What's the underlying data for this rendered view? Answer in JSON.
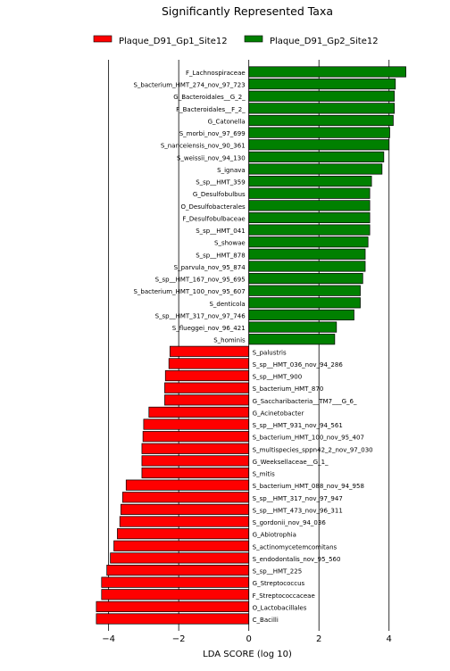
{
  "chart_data": {
    "type": "bar",
    "orientation": "horizontal",
    "title": "Significantly Represented Taxa",
    "xlabel": "LDA SCORE (log 10)",
    "ylabel": "",
    "xlim": [
      -4.5,
      5.0
    ],
    "xticks": [
      -4,
      -2,
      0,
      2,
      4
    ],
    "xtick_labels": [
      "−4",
      "−2",
      "0",
      "2",
      "4"
    ],
    "grid": "vertical lines at -4, -2, 2, 4",
    "legend_position": "top",
    "series": [
      {
        "name": "Plaque_D91_Gp1_Site12",
        "color": "#ff0000"
      },
      {
        "name": "Plaque_D91_Gp2_Site12",
        "color": "#008000"
      }
    ],
    "bars": [
      {
        "label": "F_Lachnospiraceae",
        "value": 4.48,
        "group": 1
      },
      {
        "label": "S_bacterium_HMT_274_nov_97_723",
        "value": 4.18,
        "group": 1
      },
      {
        "label": "G_Bacteroidales__G_2_",
        "value": 4.15,
        "group": 1
      },
      {
        "label": "F_Bacteroidales__F_2_",
        "value": 4.15,
        "group": 1
      },
      {
        "label": "G_Catonella",
        "value": 4.12,
        "group": 1
      },
      {
        "label": "S_morbi_nov_97_699",
        "value": 4.02,
        "group": 1
      },
      {
        "label": "S_nanceiensis_nov_90_361",
        "value": 4.0,
        "group": 1
      },
      {
        "label": "S_weissii_nov_94_130",
        "value": 3.85,
        "group": 1
      },
      {
        "label": "S_ignava",
        "value": 3.8,
        "group": 1
      },
      {
        "label": "S_sp__HMT_359",
        "value": 3.5,
        "group": 1
      },
      {
        "label": "G_Desulfobulbus",
        "value": 3.45,
        "group": 1
      },
      {
        "label": "O_Desulfobacterales",
        "value": 3.45,
        "group": 1
      },
      {
        "label": "F_Desulfobulbaceae",
        "value": 3.45,
        "group": 1
      },
      {
        "label": "S_sp__HMT_041",
        "value": 3.45,
        "group": 1
      },
      {
        "label": "S_showae",
        "value": 3.4,
        "group": 1
      },
      {
        "label": "S_sp__HMT_878",
        "value": 3.32,
        "group": 1
      },
      {
        "label": "S_parvula_nov_95_874",
        "value": 3.32,
        "group": 1
      },
      {
        "label": "S_sp__HMT_167_nov_95_695",
        "value": 3.25,
        "group": 1
      },
      {
        "label": "S_bacterium_HMT_100_nov_95_607",
        "value": 3.18,
        "group": 1
      },
      {
        "label": "S_denticola",
        "value": 3.18,
        "group": 1
      },
      {
        "label": "S_sp__HMT_317_nov_97_746",
        "value": 3.0,
        "group": 1
      },
      {
        "label": "S_flueggei_nov_96_421",
        "value": 2.5,
        "group": 1
      },
      {
        "label": "S_hominis",
        "value": 2.45,
        "group": 1
      },
      {
        "label": "S_palustris",
        "value": -2.25,
        "group": 0
      },
      {
        "label": "S_sp__HMT_036_nov_94_286",
        "value": -2.28,
        "group": 0
      },
      {
        "label": "S_sp__HMT_900",
        "value": -2.38,
        "group": 0
      },
      {
        "label": "S_bacterium_HMT_870",
        "value": -2.4,
        "group": 0
      },
      {
        "label": "G_Saccharibacteria__TM7___G_6_",
        "value": -2.4,
        "group": 0
      },
      {
        "label": "G_Acinetobacter",
        "value": -2.85,
        "group": 0
      },
      {
        "label": "S_sp__HMT_931_nov_94_561",
        "value": -3.0,
        "group": 0
      },
      {
        "label": "S_bacterium_HMT_100_nov_95_407",
        "value": -3.02,
        "group": 0
      },
      {
        "label": "S_multispecies_sppn42_2_nov_97_030",
        "value": -3.05,
        "group": 0
      },
      {
        "label": "G_Weeksellaceae__G_1_",
        "value": -3.05,
        "group": 0
      },
      {
        "label": "S_mitis",
        "value": -3.05,
        "group": 0
      },
      {
        "label": "S_bacterium_HMT_088_nov_94_958",
        "value": -3.5,
        "group": 0
      },
      {
        "label": "S_sp__HMT_317_nov_97_947",
        "value": -3.6,
        "group": 0
      },
      {
        "label": "S_sp__HMT_473_nov_96_311",
        "value": -3.65,
        "group": 0
      },
      {
        "label": "S_gordonii_nov_94_036",
        "value": -3.68,
        "group": 0
      },
      {
        "label": "G_Abiotrophia",
        "value": -3.75,
        "group": 0
      },
      {
        "label": "S_actinomycetemcomitans",
        "value": -3.85,
        "group": 0
      },
      {
        "label": "S_endodontalis_nov_95_560",
        "value": -3.95,
        "group": 0
      },
      {
        "label": "S_sp__HMT_225",
        "value": -4.05,
        "group": 0
      },
      {
        "label": "G_Streptococcus",
        "value": -4.2,
        "group": 0
      },
      {
        "label": "F_Streptococcaceae",
        "value": -4.2,
        "group": 0
      },
      {
        "label": "O_Lactobacillales",
        "value": -4.35,
        "group": 0
      },
      {
        "label": "C_Bacilli",
        "value": -4.35,
        "group": 0
      }
    ]
  }
}
